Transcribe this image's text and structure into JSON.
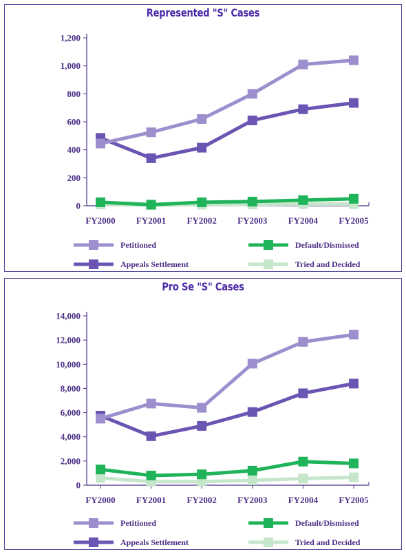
{
  "chart_data": [
    {
      "type": "line",
      "title": "Represented \"S\" Cases",
      "categories": [
        "FY2000",
        "FY2001",
        "FY2002",
        "FY2003",
        "FY2004",
        "FY2005"
      ],
      "ylim": [
        0,
        1200
      ],
      "yticks": [
        "0",
        "200",
        "400",
        "600",
        "800",
        "1,000",
        "1,200"
      ],
      "ytick_values": [
        0,
        200,
        400,
        600,
        800,
        1000,
        1200
      ],
      "series": [
        {
          "name": "Petitioned",
          "color": "#9d8fce",
          "values": [
            445,
            525,
            620,
            800,
            1010,
            1040
          ]
        },
        {
          "name": "Appeals Settlement",
          "color": "#6a55b3",
          "values": [
            485,
            340,
            415,
            610,
            690,
            735
          ]
        },
        {
          "name": "Default/Dismissed",
          "color": "#1fb35a",
          "values": [
            25,
            8,
            25,
            30,
            40,
            50
          ]
        },
        {
          "name": "Tried and Decided",
          "color": "#c6e6cc",
          "values": [
            10,
            5,
            8,
            10,
            12,
            12
          ]
        }
      ],
      "legend_position": "bottom"
    },
    {
      "type": "line",
      "title": "Pro Se \"S\" Cases",
      "categories": [
        "FY2000",
        "FY2001",
        "FY2002",
        "FY2003",
        "FY2004",
        "FY2005"
      ],
      "ylim": [
        0,
        14000
      ],
      "yticks": [
        "0",
        "2,000",
        "4,000",
        "6,000",
        "8,000",
        "10,000",
        "12,000",
        "14,000"
      ],
      "ytick_values": [
        0,
        2000,
        4000,
        6000,
        8000,
        10000,
        12000,
        14000
      ],
      "series": [
        {
          "name": "Petitioned",
          "color": "#9d8fce",
          "values": [
            5500,
            6750,
            6400,
            10050,
            11850,
            12450
          ]
        },
        {
          "name": "Appeals Settlement",
          "color": "#6a55b3",
          "values": [
            5750,
            4050,
            4900,
            6050,
            7600,
            8400
          ]
        },
        {
          "name": "Default/Dismissed",
          "color": "#1fb35a",
          "values": [
            1300,
            800,
            900,
            1200,
            1950,
            1800
          ]
        },
        {
          "name": "Tried and Decided",
          "color": "#c6e6cc",
          "values": [
            600,
            300,
            300,
            400,
            550,
            650
          ]
        }
      ],
      "legend_position": "bottom"
    }
  ]
}
